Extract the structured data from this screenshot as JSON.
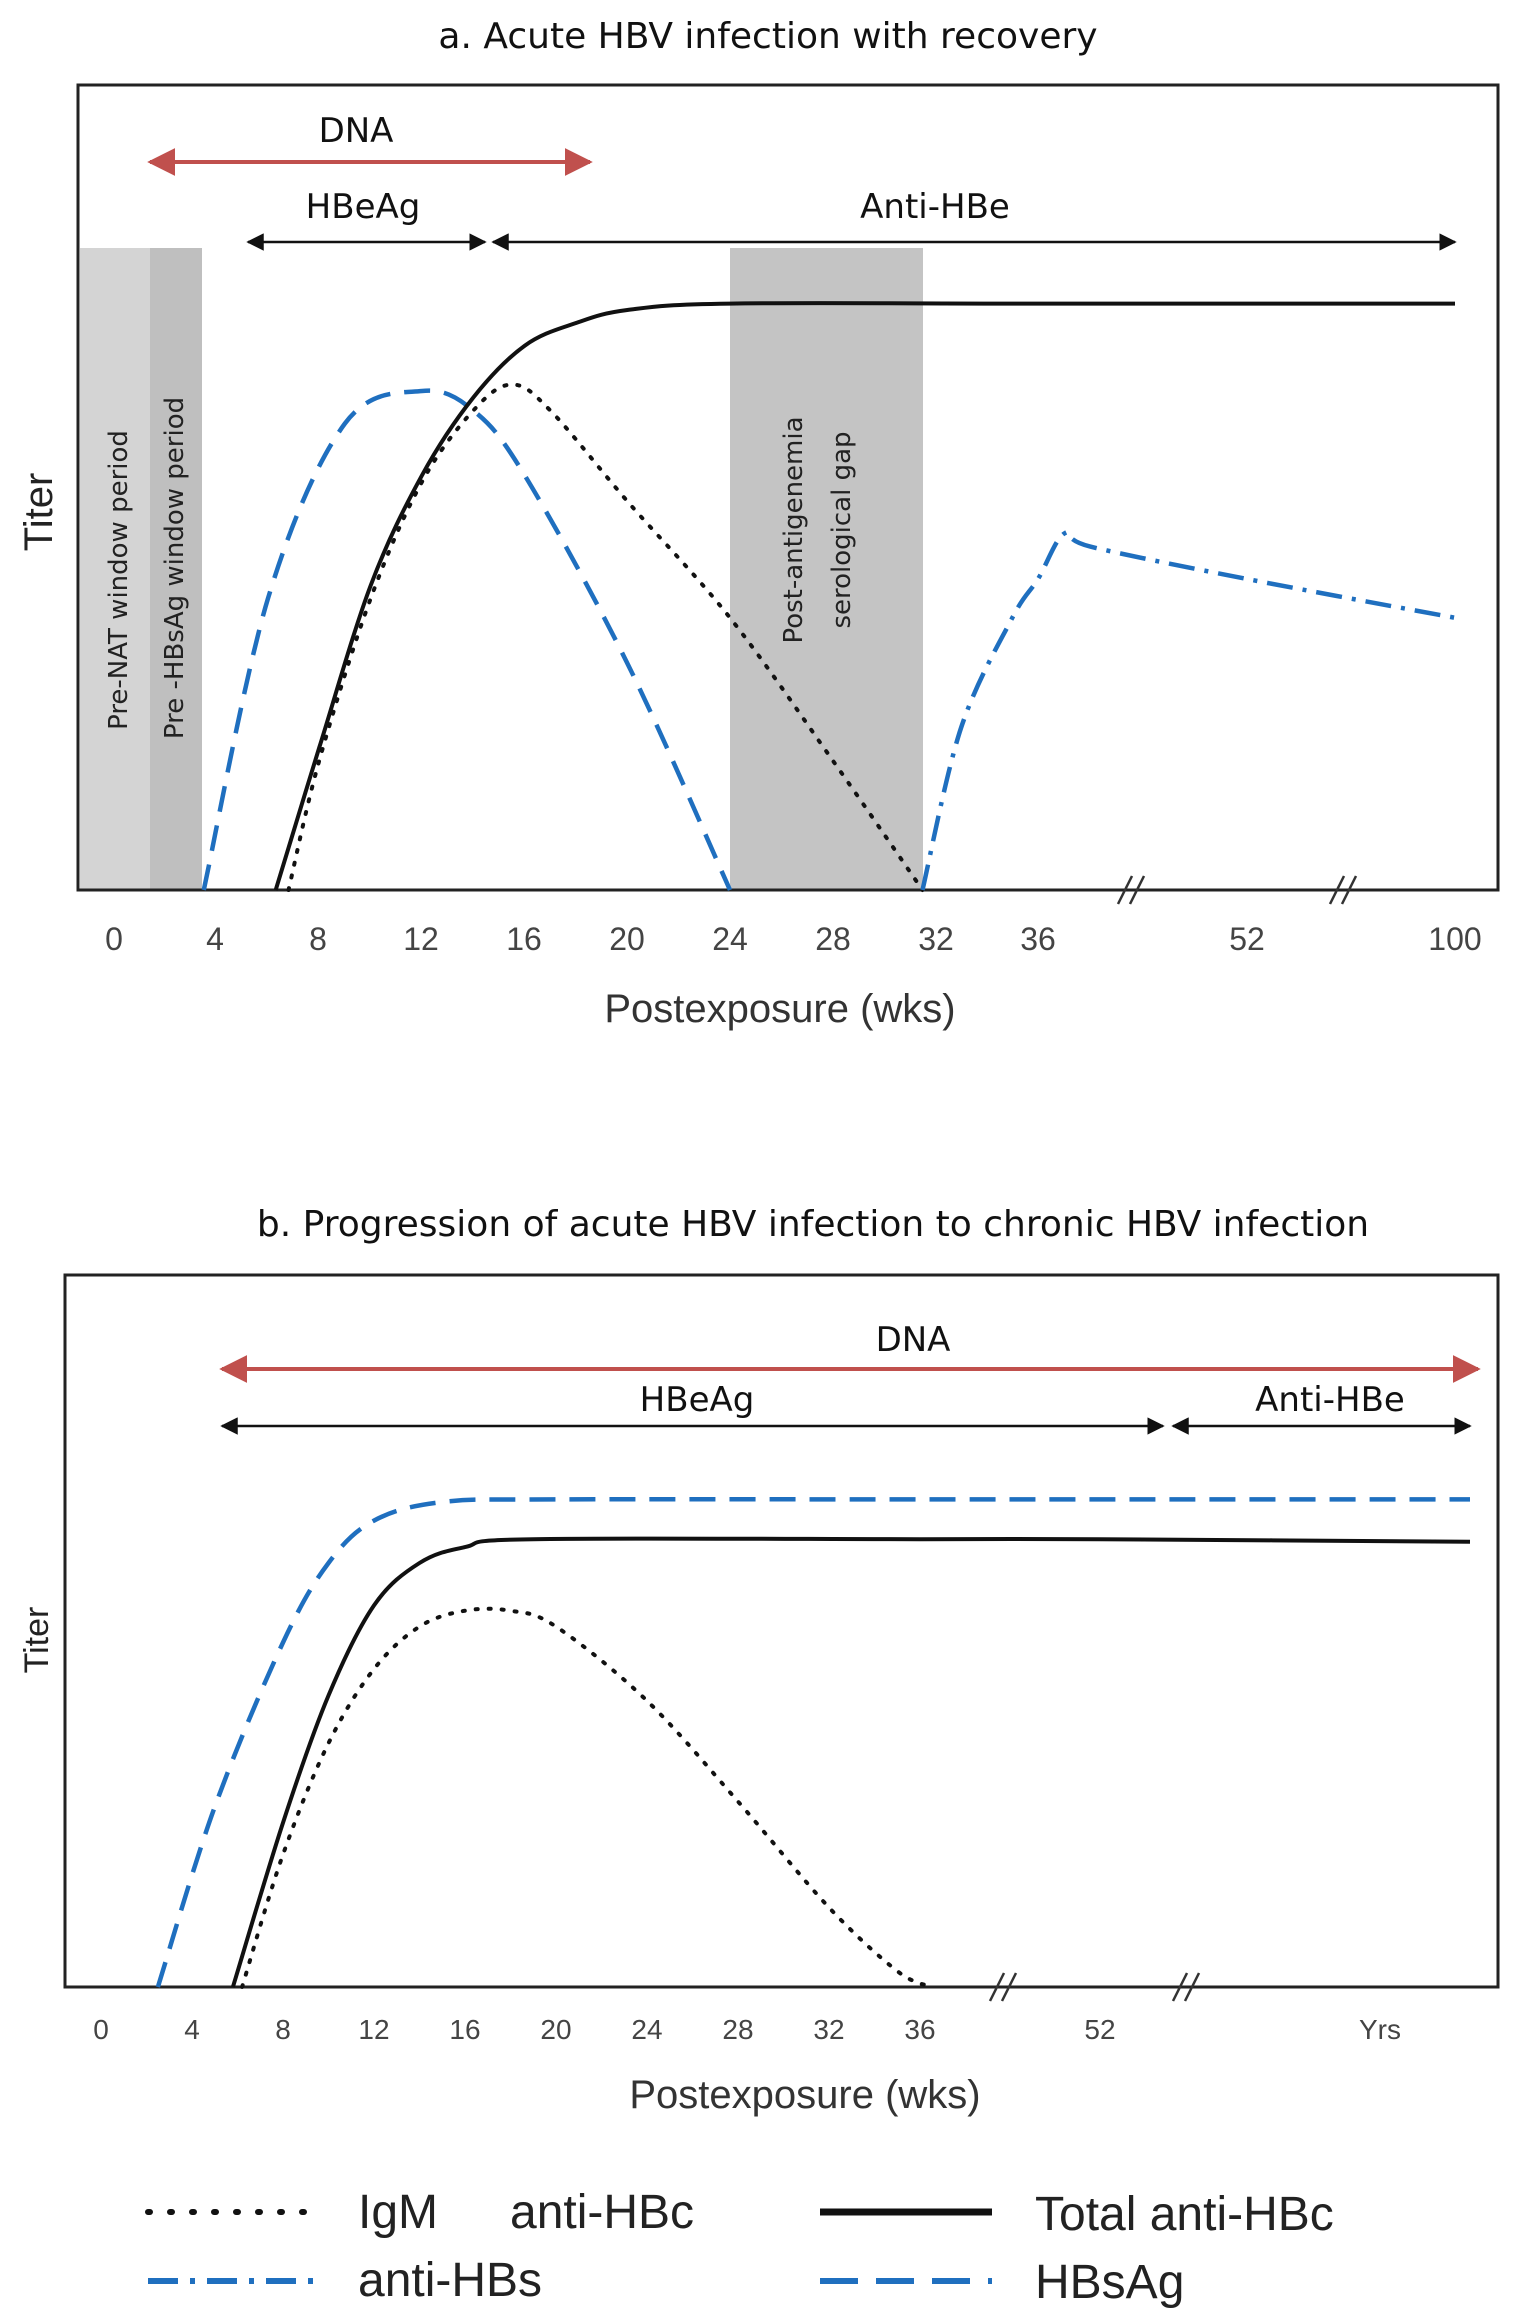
{
  "legend": {
    "igm": "IgM",
    "igm_suffix": "anti-HBc",
    "total": "Total anti-HBc",
    "antihbs": "anti-HBs",
    "hbsag": "HBsAg"
  },
  "colors": {
    "blue": "#1f6fbf",
    "red": "#c0504d",
    "black": "#111111",
    "shade_light": "#d4d4d4",
    "shade_dark": "#bfbfbf"
  },
  "chart_data": [
    {
      "type": "line",
      "title": "a.  Acute HBV infection with recovery",
      "xlabel": "Postexposure (wks)",
      "ylabel": "Titer",
      "x_ticks": [
        "0",
        "4",
        "8",
        "12",
        "16",
        "20",
        "24",
        "28",
        "32",
        "36",
        "52",
        "100"
      ],
      "axis_breaks": [
        "between 36 and 52",
        "between 52 and 100"
      ],
      "intervals": [
        {
          "label": "DNA",
          "from": 1.5,
          "to": 18.5,
          "color": "red"
        },
        {
          "label": "HBeAg",
          "from": 5,
          "to": 14.5,
          "color": "black"
        },
        {
          "label": "Anti-HBe",
          "from": 14.5,
          "to": 100,
          "color": "black"
        }
      ],
      "shaded_periods": [
        {
          "label": "Pre-NAT window period",
          "from": -1.3,
          "to": 1.4
        },
        {
          "label": "Pre -HBsAg window period",
          "from": 1.4,
          "to": 3.5
        },
        {
          "label1": "Post-antigenemia",
          "label2": "serological gap",
          "from": 24,
          "to": 31.5
        }
      ],
      "series": [
        {
          "name": "HBsAg",
          "style": "dashed",
          "points": [
            [
              3.5,
              0
            ],
            [
              6,
              0.45
            ],
            [
              9,
              0.72
            ],
            [
              12,
              0.77
            ],
            [
              14,
              0.74
            ],
            [
              16,
              0.64
            ],
            [
              20,
              0.35
            ],
            [
              24,
              0
            ]
          ]
        },
        {
          "name": "Total anti-HBc",
          "style": "solid",
          "points": [
            [
              6.3,
              0
            ],
            [
              8,
              0.22
            ],
            [
              10,
              0.47
            ],
            [
              12,
              0.64
            ],
            [
              14,
              0.76
            ],
            [
              16,
              0.84
            ],
            [
              18,
              0.875
            ],
            [
              20,
              0.895
            ],
            [
              24,
              0.905
            ],
            [
              36,
              0.905
            ],
            [
              100,
              0.905
            ]
          ]
        },
        {
          "name": "IgM anti-HBc",
          "style": "dotted",
          "points": [
            [
              6.8,
              0
            ],
            [
              8,
              0.2
            ],
            [
              10,
              0.45
            ],
            [
              12,
              0.63
            ],
            [
              14,
              0.74
            ],
            [
              15.5,
              0.78
            ],
            [
              17,
              0.74
            ],
            [
              20,
              0.6
            ],
            [
              24,
              0.42
            ],
            [
              28,
              0.2
            ],
            [
              31.5,
              0
            ]
          ]
        },
        {
          "name": "anti-HBs",
          "style": "dashdot",
          "points": [
            [
              31.5,
              0
            ],
            [
              33,
              0.25
            ],
            [
              35,
              0.42
            ],
            [
              36,
              0.48
            ],
            [
              38,
              0.55
            ],
            [
              40,
              0.53
            ],
            [
              52,
              0.48
            ],
            [
              100,
              0.42
            ]
          ]
        }
      ]
    },
    {
      "type": "line",
      "title": "b.  Progression of acute HBV infection to chronic HBV infection",
      "xlabel": "Postexposure (wks)",
      "ylabel": "Titer",
      "x_ticks": [
        "0",
        "4",
        "8",
        "12",
        "16",
        "20",
        "24",
        "28",
        "32",
        "36",
        "52",
        "Yrs"
      ],
      "axis_breaks": [
        "between 36 and 52",
        "between 52 and Yrs"
      ],
      "intervals": [
        {
          "label": "DNA",
          "from": 5.3,
          "to": "Yrs",
          "color": "red"
        },
        {
          "label": "HBeAg",
          "from": 5.3,
          "to": 56,
          "color": "black"
        },
        {
          "label": "Anti-HBe",
          "from": 56,
          "to": "Yrs",
          "color": "black"
        }
      ],
      "series": [
        {
          "name": "HBsAg",
          "style": "dashed",
          "points": [
            [
              2.5,
              0
            ],
            [
              5,
              0.34
            ],
            [
              8,
              0.65
            ],
            [
              10,
              0.8
            ],
            [
              12,
              0.88
            ],
            [
              15,
              0.915
            ],
            [
              20,
              0.92
            ],
            [
              36,
              0.92
            ],
            [
              52,
              0.92
            ],
            [
              "Yrs",
              0.92
            ]
          ]
        },
        {
          "name": "Total anti-HBc",
          "style": "solid",
          "points": [
            [
              5.8,
              0
            ],
            [
              8,
              0.31
            ],
            [
              10,
              0.55
            ],
            [
              12,
              0.72
            ],
            [
              14,
              0.8
            ],
            [
              16,
              0.83
            ],
            [
              19,
              0.845
            ],
            [
              36,
              0.845
            ],
            [
              52,
              0.845
            ],
            [
              "Yrs",
              0.84
            ]
          ]
        },
        {
          "name": "IgM anti-HBc",
          "style": "dotted",
          "points": [
            [
              6.2,
              0
            ],
            [
              8,
              0.25
            ],
            [
              10,
              0.46
            ],
            [
              12,
              0.6
            ],
            [
              14,
              0.68
            ],
            [
              16,
              0.71
            ],
            [
              18,
              0.71
            ],
            [
              20,
              0.68
            ],
            [
              24,
              0.54
            ],
            [
              28,
              0.35
            ],
            [
              32,
              0.15
            ],
            [
              35,
              0.03
            ],
            [
              37,
              0
            ]
          ]
        }
      ]
    }
  ]
}
